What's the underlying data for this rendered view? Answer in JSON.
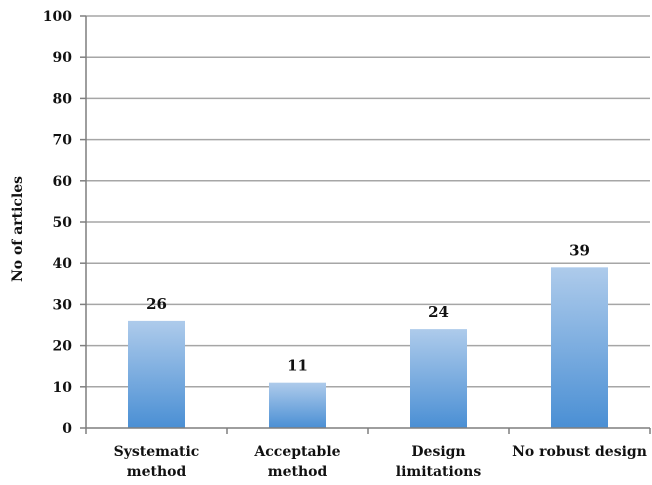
{
  "chart_data": {
    "type": "bar",
    "title": "",
    "xlabel": "",
    "ylabel": "No of articles",
    "ylim": [
      0,
      100
    ],
    "yticks": [
      0,
      10,
      20,
      30,
      40,
      50,
      60,
      70,
      80,
      90,
      100
    ],
    "categories": [
      [
        "Systematic",
        "method"
      ],
      [
        "Acceptable",
        "method"
      ],
      [
        "Design",
        "limitations"
      ],
      [
        "No robust design"
      ]
    ],
    "values": [
      26,
      11,
      24,
      39
    ],
    "data_labels": [
      "26",
      "11",
      "24",
      "39"
    ],
    "grid": true,
    "legend": "none",
    "colors": {
      "bar_top": "#aecbeb",
      "bar_bottom": "#4a8fd4",
      "grid": "#a6a6a6",
      "axis": "#7f7f7f"
    }
  }
}
